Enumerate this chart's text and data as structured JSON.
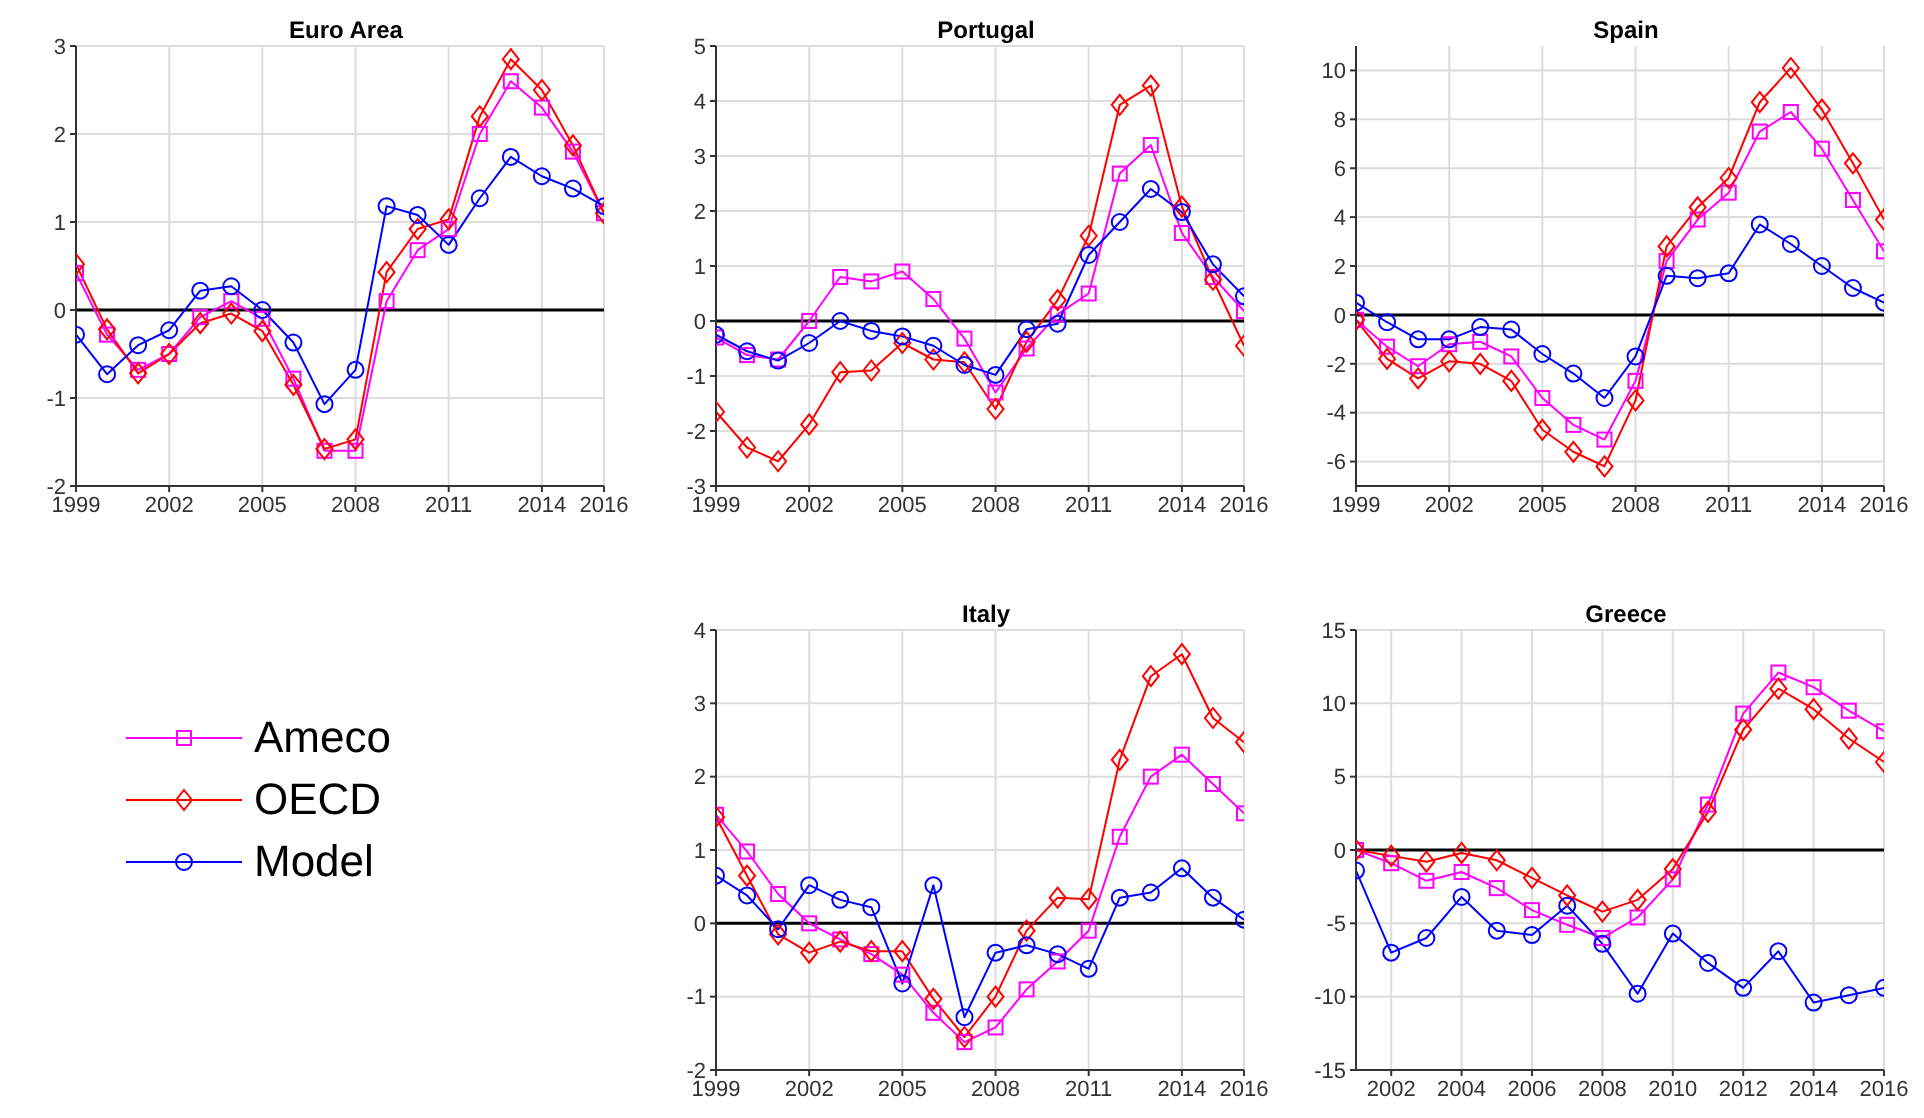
{
  "chart_data": [
    {
      "type": "line",
      "title": "Euro Area",
      "x": [
        1999,
        2000,
        2001,
        2002,
        2003,
        2004,
        2005,
        2006,
        2007,
        2008,
        2009,
        2010,
        2011,
        2012,
        2013,
        2014,
        2015,
        2016
      ],
      "xlim": [
        1999,
        2016
      ],
      "xticks": [
        1999,
        2002,
        2005,
        2008,
        2011,
        2014,
        2016
      ],
      "ylim": [
        -2,
        3
      ],
      "yticks": [
        -2,
        -1,
        0,
        1,
        2,
        3
      ],
      "grid": true,
      "legend": "bottom",
      "ref_lines": [
        {
          "axis": "y",
          "value": 0,
          "color": "#000000"
        }
      ],
      "series": [
        {
          "name": "Ameco",
          "color": "#ff00ff",
          "marker": "square",
          "values": [
            0.42,
            -0.28,
            -0.68,
            -0.5,
            -0.08,
            0.1,
            -0.1,
            -0.78,
            -1.6,
            -1.6,
            0.1,
            0.68,
            0.92,
            2.0,
            2.6,
            2.3,
            1.8,
            1.1
          ]
        },
        {
          "name": "OECD",
          "color": "#ff0000",
          "marker": "diamond",
          "values": [
            0.52,
            -0.22,
            -0.72,
            -0.5,
            -0.15,
            -0.04,
            -0.24,
            -0.85,
            -1.58,
            -1.47,
            0.43,
            0.92,
            1.03,
            2.2,
            2.85,
            2.5,
            1.87,
            1.1
          ]
        },
        {
          "name": "Model",
          "color": "#0000ff",
          "marker": "circle",
          "values": [
            -0.28,
            -0.73,
            -0.4,
            -0.23,
            0.22,
            0.27,
            0.0,
            -0.37,
            -1.07,
            -0.68,
            1.18,
            1.08,
            0.74,
            1.27,
            1.74,
            1.52,
            1.38,
            1.18
          ]
        }
      ]
    },
    {
      "type": "line",
      "title": "Portugal",
      "x": [
        1999,
        2000,
        2001,
        2002,
        2003,
        2004,
        2005,
        2006,
        2007,
        2008,
        2009,
        2010,
        2011,
        2012,
        2013,
        2014,
        2015,
        2016
      ],
      "xlim": [
        1999,
        2016
      ],
      "xticks": [
        1999,
        2002,
        2005,
        2008,
        2011,
        2014,
        2016
      ],
      "ylim": [
        -3,
        5
      ],
      "yticks": [
        -3,
        -2,
        -1,
        0,
        1,
        2,
        3,
        4,
        5
      ],
      "grid": true,
      "ref_lines": [
        {
          "axis": "y",
          "value": 0,
          "color": "#000000"
        }
      ],
      "series": [
        {
          "color": "#ff00ff",
          "marker": "square",
          "values": [
            -0.3,
            -0.62,
            -0.7,
            0.0,
            0.8,
            0.72,
            0.9,
            0.4,
            -0.32,
            -1.3,
            -0.5,
            0.12,
            0.5,
            2.68,
            3.2,
            1.6,
            0.8,
            0.18
          ]
        },
        {
          "color": "#ff0000",
          "marker": "diamond",
          "values": [
            -1.65,
            -2.3,
            -2.55,
            -1.88,
            -0.93,
            -0.9,
            -0.4,
            -0.7,
            -0.75,
            -1.6,
            -0.38,
            0.38,
            1.55,
            3.93,
            4.28,
            2.08,
            0.75,
            -0.45
          ]
        },
        {
          "color": "#0000ff",
          "marker": "circle",
          "values": [
            -0.25,
            -0.55,
            -0.72,
            -0.4,
            0.0,
            -0.18,
            -0.28,
            -0.45,
            -0.8,
            -0.98,
            -0.15,
            -0.05,
            1.2,
            1.8,
            2.4,
            1.98,
            1.03,
            0.45
          ]
        }
      ]
    },
    {
      "type": "line",
      "title": "Spain",
      "x": [
        1999,
        2000,
        2001,
        2002,
        2003,
        2004,
        2005,
        2006,
        2007,
        2008,
        2009,
        2010,
        2011,
        2012,
        2013,
        2014,
        2015,
        2016
      ],
      "xlim": [
        1999,
        2016
      ],
      "xticks": [
        1999,
        2002,
        2005,
        2008,
        2011,
        2014,
        2016
      ],
      "ylim": [
        -7,
        11
      ],
      "yticks": [
        -6,
        -4,
        -2,
        0,
        2,
        4,
        6,
        8,
        10
      ],
      "grid": true,
      "ref_lines": [
        {
          "axis": "y",
          "value": 0,
          "color": "#000000"
        }
      ],
      "series": [
        {
          "color": "#ff00ff",
          "marker": "square",
          "values": [
            -0.2,
            -1.3,
            -2.1,
            -1.2,
            -1.1,
            -1.7,
            -3.4,
            -4.5,
            -5.1,
            -2.7,
            2.2,
            3.9,
            5.0,
            7.5,
            8.3,
            6.8,
            4.7,
            2.6
          ]
        },
        {
          "color": "#ff0000",
          "marker": "diamond",
          "values": [
            -0.2,
            -1.8,
            -2.6,
            -1.9,
            -2.0,
            -2.7,
            -4.7,
            -5.6,
            -6.2,
            -3.5,
            2.8,
            4.4,
            5.6,
            8.7,
            10.1,
            8.4,
            6.2,
            3.9
          ]
        },
        {
          "color": "#0000ff",
          "marker": "circle",
          "values": [
            0.5,
            -0.3,
            -1.0,
            -1.0,
            -0.5,
            -0.6,
            -1.6,
            -2.4,
            -3.4,
            -1.7,
            1.6,
            1.5,
            1.7,
            3.7,
            2.9,
            2.0,
            1.1,
            0.5
          ]
        }
      ]
    },
    {
      "type": "line",
      "title": "Italy",
      "x": [
        1999,
        2000,
        2001,
        2002,
        2003,
        2004,
        2005,
        2006,
        2007,
        2008,
        2009,
        2010,
        2011,
        2012,
        2013,
        2014,
        2015,
        2016
      ],
      "xlim": [
        1999,
        2016
      ],
      "xticks": [
        1999,
        2002,
        2005,
        2008,
        2011,
        2014,
        2016
      ],
      "ylim": [
        -2,
        4
      ],
      "yticks": [
        -2,
        -1,
        0,
        1,
        2,
        3,
        4
      ],
      "grid": true,
      "ref_lines": [
        {
          "axis": "y",
          "value": 0,
          "color": "#000000"
        }
      ],
      "series": [
        {
          "color": "#ff00ff",
          "marker": "square",
          "values": [
            1.48,
            0.98,
            0.4,
            0.0,
            -0.22,
            -0.42,
            -0.7,
            -1.22,
            -1.62,
            -1.42,
            -0.9,
            -0.52,
            -0.1,
            1.18,
            2.0,
            2.3,
            1.9,
            1.5
          ]
        },
        {
          "color": "#ff0000",
          "marker": "diamond",
          "values": [
            1.45,
            0.65,
            -0.15,
            -0.4,
            -0.25,
            -0.38,
            -0.38,
            -1.03,
            -1.55,
            -1.0,
            -0.1,
            0.35,
            0.33,
            2.23,
            3.37,
            3.67,
            2.8,
            2.47
          ]
        },
        {
          "color": "#0000ff",
          "marker": "circle",
          "values": [
            0.65,
            0.38,
            -0.08,
            0.52,
            0.32,
            0.22,
            -0.82,
            0.52,
            -1.28,
            -0.4,
            -0.3,
            -0.42,
            -0.62,
            0.35,
            0.42,
            0.75,
            0.35,
            0.05
          ]
        }
      ]
    },
    {
      "type": "line",
      "title": "Greece",
      "x": [
        2001,
        2002,
        2003,
        2004,
        2005,
        2006,
        2007,
        2008,
        2009,
        2010,
        2011,
        2012,
        2013,
        2014,
        2015,
        2016
      ],
      "xlim": [
        2001,
        2016
      ],
      "xticks": [
        2002,
        2004,
        2006,
        2008,
        2010,
        2012,
        2014,
        2016
      ],
      "ylim": [
        -15,
        15
      ],
      "yticks": [
        -15,
        -10,
        -5,
        0,
        5,
        10,
        15
      ],
      "grid": true,
      "ref_lines": [
        {
          "axis": "y",
          "value": 0,
          "color": "#000000"
        }
      ],
      "series": [
        {
          "color": "#ff00ff",
          "marker": "square",
          "values": [
            0.0,
            -0.9,
            -2.1,
            -1.5,
            -2.6,
            -4.1,
            -5.1,
            -6.0,
            -4.6,
            -2.0,
            3.1,
            9.3,
            12.1,
            11.1,
            9.5,
            8.1
          ]
        },
        {
          "color": "#ff0000",
          "marker": "diamond",
          "values": [
            0.0,
            -0.4,
            -0.8,
            -0.2,
            -0.7,
            -1.9,
            -3.1,
            -4.2,
            -3.4,
            -1.3,
            2.6,
            8.2,
            11.0,
            9.6,
            7.6,
            6.0
          ]
        },
        {
          "color": "#0000ff",
          "marker": "circle",
          "values": [
            -1.4,
            -7.0,
            -6.0,
            -3.2,
            -5.5,
            -5.8,
            -3.8,
            -6.4,
            -9.8,
            -5.7,
            -7.7,
            -9.4,
            -6.9,
            -10.4,
            -9.9,
            -9.4
          ]
        }
      ]
    }
  ]
}
